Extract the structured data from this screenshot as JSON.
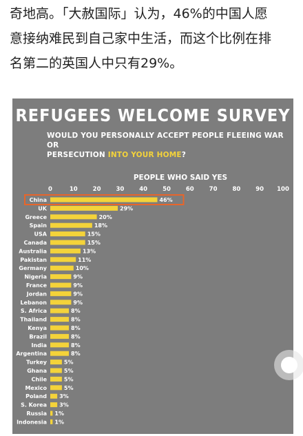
{
  "article": {
    "lines": [
      "奇地高。「大赦国际」认为，46%的中国人愿",
      "意接纳难民到自己家中生活，而这个比例在排",
      "名第二的英国人中只有29%。"
    ]
  },
  "infographic": {
    "title": "REFUGEES WELCOME SURVEY",
    "question_part1": "WOULD YOU PERSONALLY ACCEPT PEOPLE FLEEING WAR OR",
    "question_part2": "PERSECUTION ",
    "question_highlight": "INTO YOUR HOME",
    "question_end": "?"
  },
  "colors": {
    "background": "#7d7d7d",
    "bar": "#f4d33a",
    "highlight_border": "#e8652a",
    "text": "#ffffff"
  },
  "chart_data": {
    "type": "bar",
    "orientation": "horizontal",
    "axis_label": "PEOPLE WHO SAID YES",
    "xlim": [
      0,
      100
    ],
    "ticks": [
      0,
      10,
      20,
      30,
      40,
      50,
      60,
      70,
      80,
      90,
      100
    ],
    "highlighted": "China",
    "categories": [
      "China",
      "UK",
      "Greece",
      "Spain",
      "USA",
      "Canada",
      "Australia",
      "Pakistan",
      "Germany",
      "Nigeria",
      "France",
      "Jordan",
      "Lebanon",
      "S. Africa",
      "Thailand",
      "Kenya",
      "Brazil",
      "India",
      "Argentina",
      "Turkey",
      "Ghana",
      "Chile",
      "Mexico",
      "Poland",
      "S. Korea",
      "Russia",
      "Indonesia"
    ],
    "values": [
      46,
      29,
      20,
      18,
      15,
      15,
      13,
      11,
      10,
      9,
      9,
      9,
      9,
      8,
      8,
      8,
      8,
      8,
      8,
      5,
      5,
      5,
      5,
      3,
      3,
      1,
      1
    ],
    "value_labels": [
      "46%",
      "29%",
      "20%",
      "18%",
      "15%",
      "15%",
      "13%",
      "11%",
      "10%",
      "9%",
      "9%",
      "9%",
      "9%",
      "8%",
      "8%",
      "8%",
      "8%",
      "8%",
      "8%",
      "5%",
      "5%",
      "5%",
      "5%",
      "3%",
      "3%",
      "1%",
      "1%"
    ]
  }
}
